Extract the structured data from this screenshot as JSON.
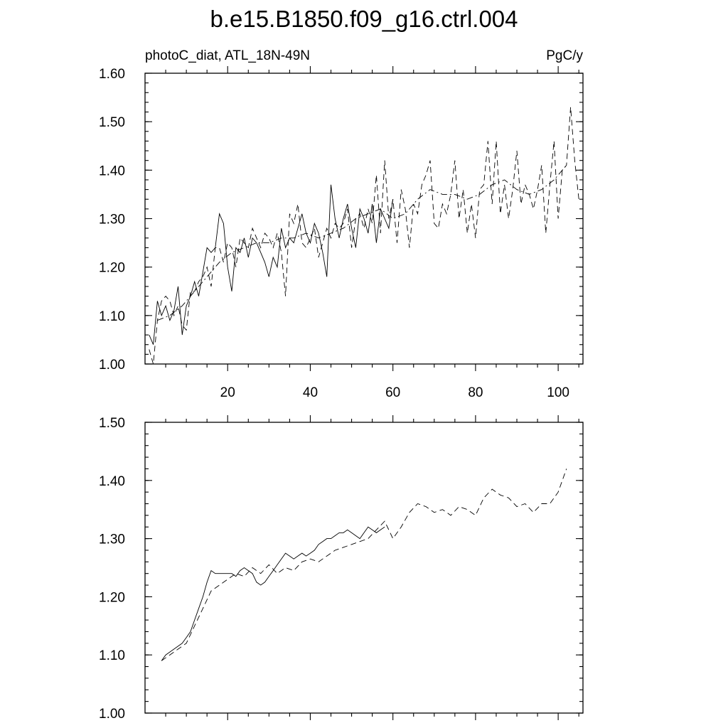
{
  "title": "b.e15.B1850.f09_g16.ctrl.004",
  "left_label": "photoC_diat, ATL_18N-49N",
  "right_label": "PgC/y",
  "chart_data": [
    {
      "type": "line",
      "xlim": [
        0,
        106
      ],
      "ylim": [
        1.0,
        1.6
      ],
      "x_ticks": [
        20,
        40,
        60,
        80,
        100
      ],
      "x_tick_labels": [
        "20",
        "40",
        "60",
        "80",
        "100"
      ],
      "y_ticks": [
        1.0,
        1.1,
        1.2,
        1.3,
        1.4,
        1.5,
        1.6
      ],
      "y_tick_labels": [
        "1.00",
        "1.10",
        "1.20",
        "1.30",
        "1.40",
        "1.50",
        "1.60"
      ],
      "series": [
        {
          "style": "solid",
          "x": [
            1,
            2,
            3,
            4,
            5,
            6,
            7,
            8,
            9,
            10,
            11,
            12,
            13,
            14,
            15,
            16,
            17,
            18,
            19,
            20,
            21,
            22,
            23,
            24,
            25,
            26,
            27,
            28,
            29,
            30,
            31,
            32,
            33,
            34,
            35,
            36,
            37,
            38,
            39,
            40,
            41,
            42,
            43,
            44,
            45,
            46,
            47,
            48,
            49,
            50,
            51,
            52,
            53,
            54,
            55,
            56,
            57,
            58,
            59,
            60
          ],
          "y": [
            1.06,
            1.04,
            1.13,
            1.1,
            1.12,
            1.09,
            1.11,
            1.16,
            1.06,
            1.12,
            1.14,
            1.17,
            1.14,
            1.19,
            1.24,
            1.23,
            1.24,
            1.31,
            1.29,
            1.2,
            1.15,
            1.24,
            1.23,
            1.26,
            1.22,
            1.26,
            1.25,
            1.23,
            1.21,
            1.18,
            1.22,
            1.2,
            1.28,
            1.24,
            1.26,
            1.25,
            1.28,
            1.31,
            1.27,
            1.25,
            1.29,
            1.27,
            1.23,
            1.18,
            1.37,
            1.3,
            1.26,
            1.3,
            1.33,
            1.28,
            1.24,
            1.32,
            1.3,
            1.27,
            1.33,
            1.25,
            1.32,
            1.3,
            1.28,
            1.34
          ]
        },
        {
          "style": "dashed",
          "x": [
            1,
            2,
            3,
            4,
            5,
            6,
            7,
            8,
            9,
            10,
            11,
            12,
            13,
            14,
            15,
            16,
            17,
            18,
            19,
            20,
            21,
            22,
            23,
            24,
            25,
            26,
            27,
            28,
            29,
            30,
            31,
            32,
            33,
            34,
            35,
            36,
            37,
            38,
            39,
            40,
            41,
            42,
            43,
            44,
            45,
            46,
            47,
            48,
            49,
            50,
            51,
            52,
            53,
            54,
            55,
            56,
            57,
            58,
            59,
            60,
            61,
            62,
            63,
            64,
            65,
            66,
            67,
            68,
            69,
            70,
            71,
            72,
            73,
            74,
            75,
            76,
            77,
            78,
            79,
            80,
            81,
            82,
            83,
            84,
            85,
            86,
            87,
            88,
            89,
            90,
            91,
            92,
            93,
            94,
            95,
            96,
            97,
            98,
            99,
            100,
            101,
            102,
            103,
            104,
            105
          ],
          "y": [
            1.03,
            1.0,
            1.09,
            1.13,
            1.14,
            1.13,
            1.1,
            1.12,
            1.08,
            1.07,
            1.15,
            1.15,
            1.17,
            1.18,
            1.2,
            1.16,
            1.24,
            1.24,
            1.21,
            1.25,
            1.24,
            1.2,
            1.26,
            1.25,
            1.24,
            1.28,
            1.26,
            1.24,
            1.27,
            1.26,
            1.24,
            1.27,
            1.23,
            1.14,
            1.31,
            1.29,
            1.33,
            1.25,
            1.24,
            1.26,
            1.28,
            1.22,
            1.25,
            1.28,
            1.26,
            1.29,
            1.28,
            1.29,
            1.32,
            1.24,
            1.3,
            1.31,
            1.28,
            1.32,
            1.29,
            1.39,
            1.27,
            1.42,
            1.3,
            1.34,
            1.25,
            1.36,
            1.32,
            1.24,
            1.33,
            1.31,
            1.37,
            1.39,
            1.42,
            1.29,
            1.28,
            1.33,
            1.31,
            1.35,
            1.42,
            1.3,
            1.36,
            1.27,
            1.33,
            1.26,
            1.36,
            1.37,
            1.46,
            1.33,
            1.46,
            1.31,
            1.37,
            1.3,
            1.36,
            1.44,
            1.33,
            1.37,
            1.35,
            1.32,
            1.36,
            1.41,
            1.27,
            1.37,
            1.46,
            1.3,
            1.4,
            1.41,
            1.53,
            1.42,
            1.34
          ]
        },
        {
          "style": "dash-dot",
          "x": [
            3,
            6,
            9,
            12,
            15,
            18,
            21,
            24,
            27,
            30,
            33,
            36,
            39,
            42,
            45,
            48,
            51,
            54,
            57,
            60,
            63,
            66,
            69,
            72,
            75,
            78,
            81,
            84,
            87,
            90,
            93,
            96,
            99,
            102
          ],
          "y": [
            1.09,
            1.1,
            1.12,
            1.15,
            1.18,
            1.21,
            1.23,
            1.24,
            1.25,
            1.25,
            1.26,
            1.26,
            1.27,
            1.26,
            1.27,
            1.28,
            1.3,
            1.31,
            1.32,
            1.3,
            1.31,
            1.34,
            1.36,
            1.35,
            1.35,
            1.34,
            1.35,
            1.37,
            1.38,
            1.36,
            1.35,
            1.36,
            1.38,
            1.41
          ]
        }
      ]
    },
    {
      "type": "line",
      "xlim": [
        0,
        106
      ],
      "ylim": [
        1.0,
        1.5
      ],
      "x_ticks": [
        20,
        40,
        60,
        80,
        100
      ],
      "x_tick_labels": [],
      "y_ticks": [
        1.0,
        1.1,
        1.2,
        1.3,
        1.4,
        1.5
      ],
      "y_tick_labels": [
        "1.00",
        "1.10",
        "1.20",
        "1.30",
        "1.40",
        "1.50"
      ],
      "series": [
        {
          "style": "solid",
          "x": [
            4,
            5,
            6,
            7,
            8,
            9,
            10,
            11,
            12,
            13,
            14,
            15,
            16,
            17,
            18,
            19,
            20,
            21,
            22,
            23,
            24,
            25,
            26,
            27,
            28,
            29,
            30,
            31,
            32,
            33,
            34,
            35,
            36,
            37,
            38,
            39,
            40,
            41,
            42,
            43,
            44,
            45,
            46,
            47,
            48,
            49,
            50,
            51,
            52,
            53,
            54,
            55,
            56,
            57,
            58
          ],
          "y": [
            1.09,
            1.1,
            1.105,
            1.11,
            1.115,
            1.12,
            1.13,
            1.14,
            1.16,
            1.18,
            1.2,
            1.225,
            1.245,
            1.24,
            1.24,
            1.24,
            1.24,
            1.24,
            1.235,
            1.245,
            1.25,
            1.245,
            1.24,
            1.225,
            1.22,
            1.225,
            1.235,
            1.245,
            1.255,
            1.265,
            1.275,
            1.27,
            1.265,
            1.27,
            1.275,
            1.27,
            1.275,
            1.28,
            1.29,
            1.295,
            1.3,
            1.3,
            1.305,
            1.31,
            1.31,
            1.315,
            1.31,
            1.305,
            1.3,
            1.31,
            1.32,
            1.315,
            1.31,
            1.315,
            1.32
          ]
        },
        {
          "style": "dashed",
          "x": [
            4,
            6,
            8,
            10,
            12,
            14,
            16,
            18,
            20,
            22,
            24,
            26,
            28,
            30,
            32,
            34,
            36,
            38,
            40,
            42,
            44,
            46,
            48,
            50,
            52,
            54,
            56,
            58,
            60,
            62,
            64,
            66,
            68,
            70,
            72,
            74,
            76,
            78,
            80,
            82,
            84,
            86,
            88,
            90,
            92,
            94,
            96,
            98,
            100,
            102
          ],
          "y": [
            1.09,
            1.1,
            1.11,
            1.12,
            1.15,
            1.18,
            1.21,
            1.22,
            1.23,
            1.24,
            1.235,
            1.25,
            1.24,
            1.255,
            1.24,
            1.25,
            1.245,
            1.26,
            1.265,
            1.26,
            1.27,
            1.28,
            1.285,
            1.29,
            1.295,
            1.3,
            1.315,
            1.33,
            1.3,
            1.32,
            1.345,
            1.36,
            1.355,
            1.345,
            1.35,
            1.34,
            1.355,
            1.35,
            1.34,
            1.37,
            1.385,
            1.375,
            1.37,
            1.355,
            1.36,
            1.345,
            1.36,
            1.36,
            1.38,
            1.42
          ]
        }
      ]
    }
  ]
}
